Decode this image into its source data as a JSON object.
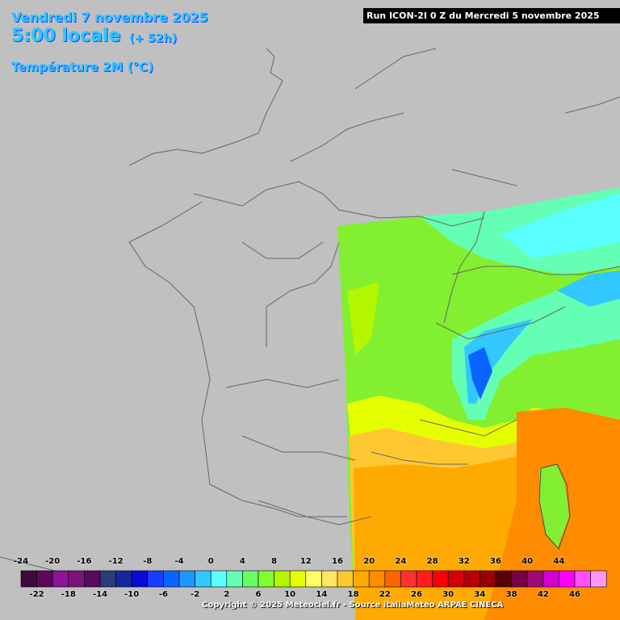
{
  "header": {
    "date": "Vendredi 7 novembre 2025",
    "time": "5:00 locale",
    "offset": "(+ 52h)",
    "variable": "Température 2M (°C)"
  },
  "run": "Run ICON-2I 0 Z du Mercredi 5 novembre 2025",
  "legend": {
    "top_labels": [
      "-24",
      "-20",
      "-16",
      "-12",
      "-8",
      "-4",
      "0",
      "4",
      "8",
      "12",
      "16",
      "20",
      "24",
      "28",
      "32",
      "36",
      "40",
      "44"
    ],
    "bottom_labels": [
      "-22",
      "-18",
      "-14",
      "-10",
      "-6",
      "-2",
      "2",
      "6",
      "10",
      "14",
      "18",
      "22",
      "26",
      "30",
      "34",
      "38",
      "42",
      "46"
    ],
    "colors": [
      "#3c0a3c",
      "#5a0a5a",
      "#8c1496",
      "#7a1478",
      "#5a0a5a",
      "#2a3c7a",
      "#1428a0",
      "#0a0ad2",
      "#1a3cff",
      "#0a64ff",
      "#1e96ff",
      "#32c8ff",
      "#5affff",
      "#64ffb4",
      "#64ff64",
      "#82ff32",
      "#b4f500",
      "#e6ff00",
      "#ffff64",
      "#ffe664",
      "#ffc832",
      "#ffaa00",
      "#ff8c00",
      "#ff6400",
      "#ff3232",
      "#ff1e1e",
      "#ff0000",
      "#d20000",
      "#b40000",
      "#960000",
      "#5a0000",
      "#780046",
      "#a00a78",
      "#d200d2",
      "#ff00ff",
      "#ff50ff",
      "#ff96ff"
    ]
  },
  "copyright": "Copyright © 2025 Meteociel.fr - Source italiaMeteo ARPAE CINECA"
}
